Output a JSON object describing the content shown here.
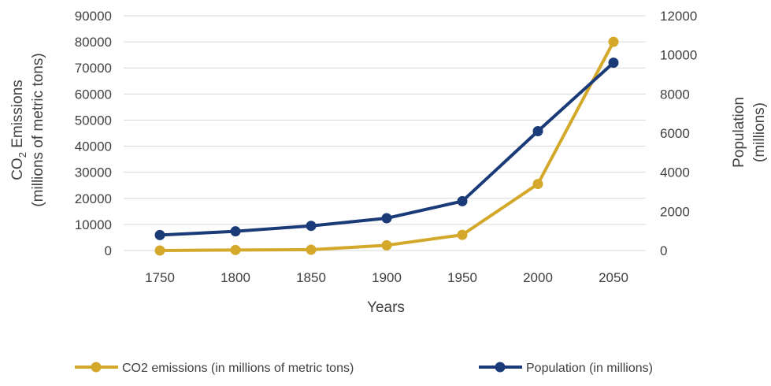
{
  "chart_data": {
    "type": "line",
    "x": [
      1750,
      1800,
      1850,
      1900,
      1950,
      2000,
      2050
    ],
    "xlabel": "Years",
    "ylabel_left": {
      "line1": "CO",
      "line1_sub": "2",
      "line1_rest": " Emissions",
      "line2": "(millions of metric tons)"
    },
    "ylabel_right": {
      "line1": "Population",
      "line2": "(millions)"
    },
    "ylim_left": [
      0,
      90000
    ],
    "ylim_right": [
      0,
      12000
    ],
    "yticks_left": [
      "0",
      "10000",
      "20000",
      "30000",
      "40000",
      "50000",
      "60000",
      "70000",
      "80000",
      "90000"
    ],
    "yticks_right": [
      "0",
      "2000",
      "4000",
      "6000",
      "8000",
      "10000",
      "12000"
    ],
    "xticks": [
      "1750",
      "1800",
      "1850",
      "1900",
      "1950",
      "2000",
      "2050"
    ],
    "grid": true,
    "legend_position": "bottom",
    "series": [
      {
        "name": "CO2 emissions (in millions of metric tons)",
        "axis": "left",
        "color": "#d4a82a",
        "values": [
          0,
          200,
          300,
          2000,
          6000,
          25500,
          80000
        ]
      },
      {
        "name": "Population (in millions)",
        "axis": "right",
        "color": "#1a3a78",
        "values": [
          790,
          980,
          1260,
          1650,
          2520,
          6100,
          9600
        ]
      }
    ]
  }
}
